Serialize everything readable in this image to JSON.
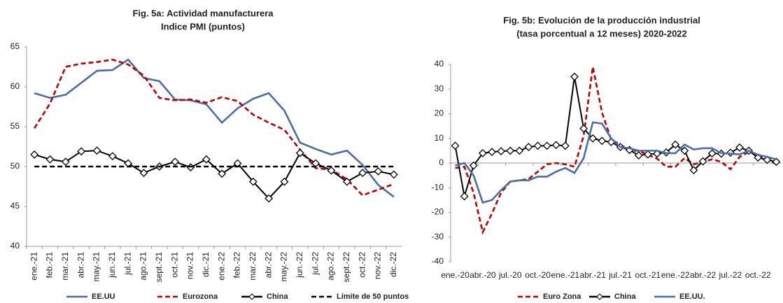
{
  "chart_data": [
    {
      "type": "line",
      "title": "Fig. 5a: Actividad manufacturera",
      "subtitle": "Indice PMI (puntos)",
      "categories": [
        "ene.-21",
        "feb.-21",
        "mar.-21",
        "abr.-21",
        "may.-21",
        "jun.-21",
        "jul.-21",
        "ago.-21",
        "sept.-21",
        "oct.-21",
        "nov.-21",
        "dic.-21",
        "ene.-22",
        "feb.-22",
        "mar.-22",
        "abr.-22",
        "may.-22",
        "jun.-22",
        "jul.-22",
        "ago.-22",
        "sept.-22",
        "oct.-22",
        "nov.-22",
        "dic.-22"
      ],
      "ylim": [
        40,
        65
      ],
      "yticks": [
        40,
        45,
        50,
        55,
        60,
        65
      ],
      "series": [
        {
          "name": "EE.UU",
          "color": "#4a6ea8",
          "values": [
            59.2,
            58.6,
            59.0,
            60.5,
            62.0,
            62.1,
            63.4,
            61.1,
            60.7,
            58.4,
            58.3,
            57.8,
            55.5,
            57.3,
            58.5,
            59.2,
            57.0,
            53.0,
            52.2,
            51.5,
            52.0,
            50.2,
            47.7,
            46.2
          ]
        },
        {
          "name": "Eurozona",
          "color": "#c00000",
          "dash": true,
          "values": [
            54.8,
            57.9,
            62.5,
            62.9,
            63.1,
            63.4,
            62.8,
            61.4,
            58.6,
            58.3,
            58.4,
            58.0,
            58.7,
            58.2,
            56.5,
            55.5,
            54.6,
            52.1,
            49.8,
            49.6,
            48.4,
            46.4,
            47.1,
            47.8
          ]
        },
        {
          "name": "China",
          "color": "#000000",
          "marker": "diamond",
          "values": [
            51.5,
            50.9,
            50.6,
            51.9,
            52.0,
            51.3,
            50.4,
            49.2,
            50.0,
            50.6,
            49.9,
            50.9,
            49.1,
            50.4,
            48.1,
            46.0,
            48.1,
            51.7,
            50.4,
            49.5,
            48.1,
            49.2,
            49.4,
            49.0
          ]
        },
        {
          "name": "Límite de 50 puntos",
          "color": "#000000",
          "dash": true,
          "values": [
            50,
            50,
            50,
            50,
            50,
            50,
            50,
            50,
            50,
            50,
            50,
            50,
            50,
            50,
            50,
            50,
            50,
            50,
            50,
            50,
            50,
            50,
            50,
            50
          ]
        }
      ]
    },
    {
      "type": "line",
      "title": "Fig. 5b: Evolución de la producción industrial",
      "subtitle": "(tasa porcentual a 12 meses) 2020-2022",
      "categories": [
        "ene.-20",
        null,
        null,
        "abr.-20",
        null,
        null,
        "jul.-20",
        null,
        null,
        "oct.-20",
        null,
        null,
        "ene.-21",
        null,
        null,
        "abr.-21",
        null,
        null,
        "jul.-21",
        null,
        null,
        "oct.-21",
        null,
        null,
        "ene.-22",
        null,
        null,
        "abr.-22",
        null,
        null,
        "jul.-22",
        null,
        null,
        "oct.-22",
        null,
        null
      ],
      "ylim": [
        -40,
        40
      ],
      "yticks": [
        -40,
        -30,
        -20,
        -10,
        0,
        10,
        20,
        30,
        40
      ],
      "series": [
        {
          "name": "Euro Zona",
          "color": "#c00000",
          "dash": true,
          "values": [
            -2,
            -1.5,
            -12,
            -28,
            -20.5,
            -12,
            -7.5,
            -7,
            -6.5,
            -3.5,
            -0.5,
            0,
            -0.5,
            -1.5,
            11,
            39,
            20.5,
            9.5,
            7.5,
            5,
            5,
            3.3,
            1.8,
            -1.5,
            -1.5,
            2,
            -0.5,
            0.5,
            1.5,
            0.5,
            -2.5,
            2.5,
            4.5,
            3.5,
            1.5,
            -0.5
          ]
        },
        {
          "name": "China",
          "color": "#000000",
          "marker": "diamond",
          "values": [
            7,
            -13.5,
            -1,
            4,
            4.5,
            4.8,
            5,
            5,
            6.5,
            7,
            7,
            7.3,
            7,
            35,
            14,
            10,
            9,
            8.5,
            6.5,
            5.3,
            3.1,
            3.5,
            3.8,
            4.3,
            7.5,
            5,
            -2.9,
            0.7,
            3.9,
            3.8,
            4.2,
            6.3,
            5,
            2.2,
            1.3,
            0.5
          ]
        },
        {
          "name": "EE.UU.",
          "color": "#4a6ea8",
          "values": [
            -1,
            0,
            -5,
            -16,
            -15,
            -11,
            -7.5,
            -7,
            -7,
            -5.5,
            -5.5,
            -3.5,
            -2,
            -4,
            2,
            16.5,
            16,
            10,
            6.5,
            6,
            5,
            5,
            5,
            4,
            4,
            7.5,
            5.5,
            6,
            6,
            4,
            3.8,
            3.5,
            5,
            3.3,
            2.5,
            1.5
          ]
        }
      ]
    }
  ]
}
